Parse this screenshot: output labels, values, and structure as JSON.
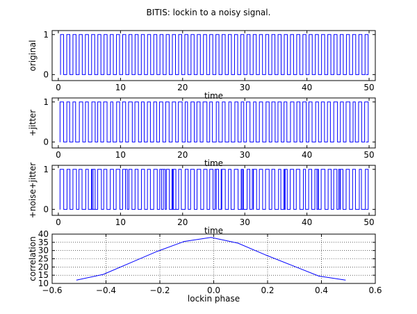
{
  "figure": {
    "title": "BITIS: lockin to a noisy signal."
  },
  "colors": {
    "line": "#0000ff",
    "axes": "#000000",
    "grid": "#000000",
    "background": "#ffffff"
  },
  "chart_data": [
    {
      "type": "line",
      "ylabel": "original",
      "xlabel": "time",
      "xlim": [
        -1,
        51
      ],
      "ylim": [
        -0.15,
        1.1
      ],
      "xticks": [
        0,
        10,
        20,
        30,
        40,
        50
      ],
      "xtick_labels": [
        "0",
        "10",
        "20",
        "30",
        "40",
        "50"
      ],
      "yticks": [
        0,
        1
      ],
      "ytick_labels": [
        "0",
        "1"
      ],
      "grid": false,
      "signal": {
        "kind": "square_wave",
        "period": 1.0,
        "duty": 0.5,
        "start": 0.35,
        "end": 49.5,
        "low": 0,
        "high": 1
      }
    },
    {
      "type": "line",
      "ylabel": "+jitter",
      "xlabel": "time",
      "xlim": [
        -1,
        51
      ],
      "ylim": [
        -0.15,
        1.1
      ],
      "xticks": [
        0,
        10,
        20,
        30,
        40,
        50
      ],
      "xtick_labels": [
        "0",
        "10",
        "20",
        "30",
        "40",
        "50"
      ],
      "yticks": [
        0,
        1
      ],
      "ytick_labels": [
        "0",
        "1"
      ],
      "grid": false,
      "signal": {
        "kind": "square_wave_jitter",
        "period": 1.0,
        "duty": 0.5,
        "start": 0.35,
        "end": 49.5,
        "low": 0,
        "high": 1,
        "jitter": 0.08
      }
    },
    {
      "type": "line",
      "ylabel": "+noise+jitter",
      "xlabel": "time",
      "xlim": [
        -1,
        51
      ],
      "ylim": [
        -0.15,
        1.1
      ],
      "xticks": [
        0,
        10,
        20,
        30,
        40,
        50
      ],
      "xtick_labels": [
        "0",
        "10",
        "20",
        "30",
        "40",
        "50"
      ],
      "yticks": [
        0,
        1
      ],
      "ytick_labels": [
        "0",
        "1"
      ],
      "grid": false,
      "signal": {
        "kind": "square_wave_noise_jitter",
        "period": 1.0,
        "duty": 0.5,
        "start": 0.35,
        "end": 49.5,
        "low": 0,
        "high": 1,
        "jitter": 0.08,
        "glitch_times": [
          5.4,
          5.6,
          10.8,
          11.1,
          16.6,
          17.2,
          18.4,
          18.5,
          25.2,
          25.4,
          26.2,
          26.3,
          29.5,
          29.7,
          31.2,
          31.4,
          36.3,
          36.5,
          41.6,
          41.8,
          45.1,
          45.3
        ]
      }
    },
    {
      "type": "line",
      "ylabel": "correlation",
      "xlabel": "lockin phase",
      "xlim": [
        -0.6,
        0.6
      ],
      "ylim": [
        10,
        40
      ],
      "xticks": [
        -0.6,
        -0.4,
        -0.2,
        0.0,
        0.2,
        0.4,
        0.6
      ],
      "xtick_labels": [
        "−0.6",
        "−0.4",
        "−0.2",
        "0.0",
        "0.2",
        "0.4",
        "0.6"
      ],
      "yticks": [
        10,
        15,
        20,
        25,
        30,
        35,
        40
      ],
      "ytick_labels": [
        "10",
        "15",
        "20",
        "25",
        "30",
        "35",
        "40"
      ],
      "grid": true,
      "series": [
        {
          "x": [
            -0.51,
            -0.41,
            -0.31,
            -0.21,
            -0.11,
            -0.01,
            0.09,
            0.19,
            0.29,
            0.39,
            0.49
          ],
          "y": [
            12,
            15.5,
            22.5,
            29.5,
            35.5,
            38,
            34.5,
            27.5,
            21,
            14.5,
            12
          ]
        }
      ]
    }
  ]
}
